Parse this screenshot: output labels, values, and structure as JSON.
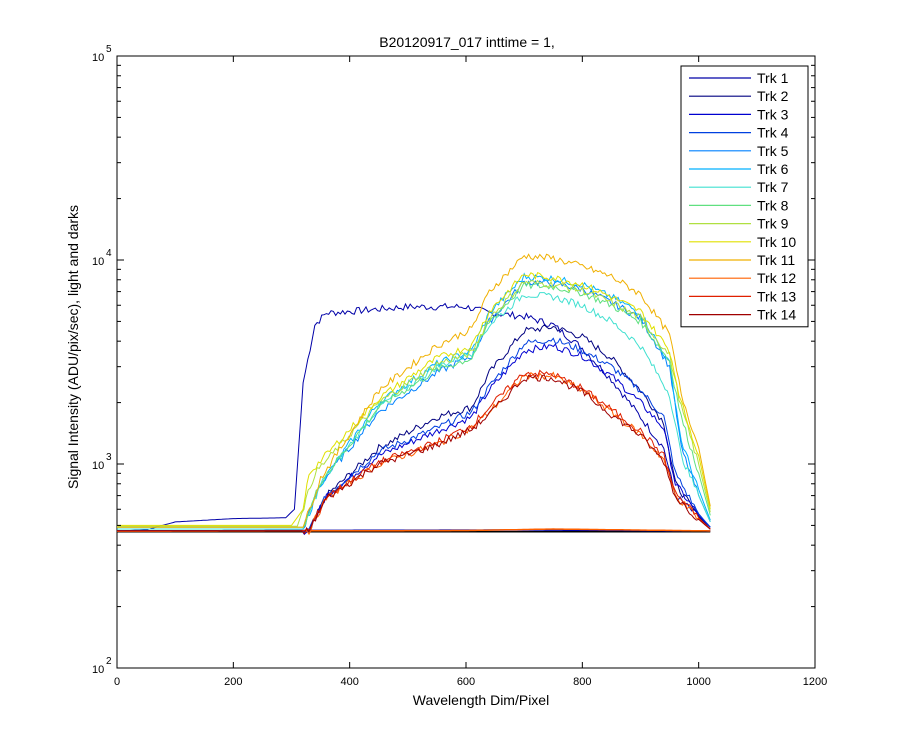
{
  "chart_data": {
    "type": "line",
    "title": "B20120917_017 inttime = 1,",
    "xlabel": "Wavelength Dim/Pixel",
    "ylabel": "Signal Intensity (ADU/pix/sec), light and darks",
    "xlim": [
      0,
      1200
    ],
    "ylim": [
      100,
      100000
    ],
    "yscale": "log",
    "x_ticks": [
      0,
      200,
      400,
      600,
      800,
      1000,
      1200
    ],
    "y_ticks": [
      {
        "base": "10",
        "exp": "2",
        "value": 100
      },
      {
        "base": "10",
        "exp": "3",
        "value": 1000
      },
      {
        "base": "10",
        "exp": "4",
        "value": 10000
      },
      {
        "base": "10",
        "exp": "5",
        "value": 100000
      }
    ],
    "grid": false,
    "legend_position": "top-right",
    "series": [
      {
        "name": "Trk 1",
        "color": "#0000a8",
        "points": [
          [
            0,
            470
          ],
          [
            50,
            475
          ],
          [
            100,
            520
          ],
          [
            200,
            540
          ],
          [
            290,
            545
          ],
          [
            305,
            600
          ],
          [
            320,
            2500
          ],
          [
            340,
            4800
          ],
          [
            360,
            5500
          ],
          [
            400,
            5600
          ],
          [
            500,
            5900
          ],
          [
            600,
            5900
          ],
          [
            640,
            5500
          ],
          [
            700,
            5300
          ],
          [
            750,
            4800
          ],
          [
            800,
            3700
          ],
          [
            850,
            2600
          ],
          [
            900,
            1700
          ],
          [
            940,
            1200
          ],
          [
            960,
            700
          ],
          [
            1000,
            550
          ],
          [
            1020,
            490
          ]
        ]
      },
      {
        "name": "Trk 2",
        "color": "#000080",
        "points": [
          [
            0,
            470
          ],
          [
            330,
            470
          ],
          [
            360,
            700
          ],
          [
            450,
            1200
          ],
          [
            550,
            1700
          ],
          [
            610,
            1900
          ],
          [
            640,
            2800
          ],
          [
            700,
            4500
          ],
          [
            750,
            4700
          ],
          [
            800,
            4200
          ],
          [
            850,
            3300
          ],
          [
            900,
            2300
          ],
          [
            940,
            1600
          ],
          [
            960,
            800
          ],
          [
            1000,
            550
          ],
          [
            1020,
            490
          ]
        ]
      },
      {
        "name": "Trk 3",
        "color": "#0000d0",
        "points": [
          [
            0,
            470
          ],
          [
            330,
            470
          ],
          [
            360,
            700
          ],
          [
            450,
            1100
          ],
          [
            550,
            1450
          ],
          [
            610,
            1700
          ],
          [
            640,
            2300
          ],
          [
            700,
            3600
          ],
          [
            750,
            3800
          ],
          [
            800,
            3400
          ],
          [
            850,
            2700
          ],
          [
            900,
            2000
          ],
          [
            940,
            1500
          ],
          [
            960,
            800
          ],
          [
            1000,
            560
          ],
          [
            1020,
            490
          ]
        ]
      },
      {
        "name": "Trk 4",
        "color": "#0040e0",
        "points": [
          [
            0,
            470
          ],
          [
            330,
            470
          ],
          [
            360,
            700
          ],
          [
            450,
            1150
          ],
          [
            550,
            1500
          ],
          [
            610,
            1800
          ],
          [
            640,
            2400
          ],
          [
            700,
            3900
          ],
          [
            750,
            4100
          ],
          [
            800,
            3600
          ],
          [
            850,
            3000
          ],
          [
            900,
            2300
          ],
          [
            940,
            1700
          ],
          [
            960,
            900
          ],
          [
            1000,
            570
          ],
          [
            1020,
            490
          ]
        ]
      },
      {
        "name": "Trk 5",
        "color": "#0080ff",
        "points": [
          [
            0,
            480
          ],
          [
            320,
            480
          ],
          [
            350,
            800
          ],
          [
            450,
            1800
          ],
          [
            550,
            2800
          ],
          [
            610,
            3400
          ],
          [
            640,
            5000
          ],
          [
            700,
            7800
          ],
          [
            750,
            7700
          ],
          [
            800,
            7200
          ],
          [
            850,
            6200
          ],
          [
            900,
            5200
          ],
          [
            950,
            3000
          ],
          [
            970,
            1200
          ],
          [
            1000,
            700
          ],
          [
            1020,
            520
          ]
        ]
      },
      {
        "name": "Trk 6",
        "color": "#00b0ff",
        "points": [
          [
            0,
            480
          ],
          [
            320,
            480
          ],
          [
            350,
            800
          ],
          [
            450,
            2000
          ],
          [
            550,
            3100
          ],
          [
            610,
            3600
          ],
          [
            640,
            5500
          ],
          [
            700,
            8300
          ],
          [
            750,
            8100
          ],
          [
            800,
            7600
          ],
          [
            850,
            6600
          ],
          [
            900,
            5500
          ],
          [
            950,
            3100
          ],
          [
            970,
            1300
          ],
          [
            1000,
            750
          ],
          [
            1020,
            530
          ]
        ]
      },
      {
        "name": "Trk 7",
        "color": "#40e0d0",
        "points": [
          [
            0,
            480
          ],
          [
            320,
            480
          ],
          [
            350,
            800
          ],
          [
            450,
            1900
          ],
          [
            550,
            3000
          ],
          [
            610,
            3500
          ],
          [
            640,
            4800
          ],
          [
            700,
            6800
          ],
          [
            750,
            6600
          ],
          [
            800,
            6000
          ],
          [
            850,
            5000
          ],
          [
            900,
            3800
          ],
          [
            950,
            2200
          ],
          [
            970,
            1100
          ],
          [
            1000,
            700
          ],
          [
            1020,
            520
          ]
        ]
      },
      {
        "name": "Trk 8",
        "color": "#60e080",
        "points": [
          [
            0,
            490
          ],
          [
            320,
            490
          ],
          [
            350,
            820
          ],
          [
            450,
            1900
          ],
          [
            550,
            2900
          ],
          [
            610,
            3300
          ],
          [
            640,
            5000
          ],
          [
            700,
            7500
          ],
          [
            750,
            7400
          ],
          [
            800,
            6900
          ],
          [
            850,
            6000
          ],
          [
            900,
            5000
          ],
          [
            950,
            3200
          ],
          [
            970,
            1700
          ],
          [
            1000,
            900
          ],
          [
            1020,
            560
          ]
        ]
      },
      {
        "name": "Trk 9",
        "color": "#b0e040",
        "points": [
          [
            0,
            495
          ],
          [
            310,
            495
          ],
          [
            340,
            900
          ],
          [
            450,
            2000
          ],
          [
            550,
            3100
          ],
          [
            610,
            3500
          ],
          [
            640,
            5200
          ],
          [
            700,
            7800
          ],
          [
            750,
            7600
          ],
          [
            800,
            7100
          ],
          [
            850,
            6200
          ],
          [
            900,
            5200
          ],
          [
            950,
            3400
          ],
          [
            970,
            1900
          ],
          [
            1000,
            1000
          ],
          [
            1020,
            580
          ]
        ]
      },
      {
        "name": "Trk 10",
        "color": "#e0e000",
        "points": [
          [
            0,
            500
          ],
          [
            300,
            500
          ],
          [
            320,
            600
          ],
          [
            330,
            900
          ],
          [
            450,
            2100
          ],
          [
            550,
            3300
          ],
          [
            610,
            3800
          ],
          [
            640,
            5600
          ],
          [
            700,
            8500
          ],
          [
            750,
            8200
          ],
          [
            800,
            7600
          ],
          [
            850,
            6600
          ],
          [
            900,
            5600
          ],
          [
            950,
            3600
          ],
          [
            970,
            2000
          ],
          [
            1000,
            1100
          ],
          [
            1020,
            600
          ]
        ]
      },
      {
        "name": "Trk 11",
        "color": "#f0b000",
        "points": [
          [
            0,
            490
          ],
          [
            320,
            490
          ],
          [
            350,
            850
          ],
          [
            450,
            2300
          ],
          [
            550,
            3800
          ],
          [
            610,
            4600
          ],
          [
            640,
            7000
          ],
          [
            700,
            10500
          ],
          [
            750,
            10200
          ],
          [
            800,
            9300
          ],
          [
            850,
            8300
          ],
          [
            900,
            6800
          ],
          [
            950,
            4300
          ],
          [
            970,
            2200
          ],
          [
            1000,
            1200
          ],
          [
            1020,
            620
          ]
        ]
      },
      {
        "name": "Trk 12",
        "color": "#ff6000",
        "points": [
          [
            0,
            470
          ],
          [
            330,
            470
          ],
          [
            360,
            680
          ],
          [
            450,
            1000
          ],
          [
            550,
            1250
          ],
          [
            610,
            1500
          ],
          [
            640,
            1800
          ],
          [
            700,
            2700
          ],
          [
            750,
            2700
          ],
          [
            800,
            2300
          ],
          [
            850,
            1800
          ],
          [
            900,
            1400
          ],
          [
            940,
            1050
          ],
          [
            960,
            700
          ],
          [
            1000,
            540
          ],
          [
            1020,
            480
          ]
        ]
      },
      {
        "name": "Trk 13",
        "color": "#e02000",
        "points": [
          [
            0,
            470
          ],
          [
            330,
            470
          ],
          [
            360,
            690
          ],
          [
            450,
            1020
          ],
          [
            550,
            1280
          ],
          [
            610,
            1550
          ],
          [
            640,
            1900
          ],
          [
            700,
            2800
          ],
          [
            750,
            2750
          ],
          [
            800,
            2350
          ],
          [
            850,
            1850
          ],
          [
            900,
            1450
          ],
          [
            940,
            1100
          ],
          [
            960,
            720
          ],
          [
            1000,
            545
          ],
          [
            1020,
            480
          ]
        ]
      },
      {
        "name": "Trk 14",
        "color": "#a00000",
        "points": [
          [
            0,
            470
          ],
          [
            330,
            470
          ],
          [
            360,
            680
          ],
          [
            450,
            1000
          ],
          [
            550,
            1240
          ],
          [
            610,
            1480
          ],
          [
            640,
            1750
          ],
          [
            700,
            2650
          ],
          [
            750,
            2650
          ],
          [
            800,
            2250
          ],
          [
            850,
            1750
          ],
          [
            900,
            1380
          ],
          [
            940,
            1030
          ],
          [
            960,
            690
          ],
          [
            1000,
            535
          ],
          [
            1020,
            478
          ]
        ]
      }
    ],
    "dark_series": [
      {
        "color": "#000000",
        "points": [
          [
            0,
            465
          ],
          [
            1020,
            465
          ]
        ]
      },
      {
        "color": "#0000a8",
        "points": [
          [
            0,
            470
          ],
          [
            700,
            475
          ],
          [
            1020,
            470
          ]
        ]
      },
      {
        "color": "#ff6000",
        "points": [
          [
            0,
            468
          ],
          [
            600,
            472
          ],
          [
            750,
            480
          ],
          [
            1020,
            470
          ]
        ]
      }
    ]
  }
}
